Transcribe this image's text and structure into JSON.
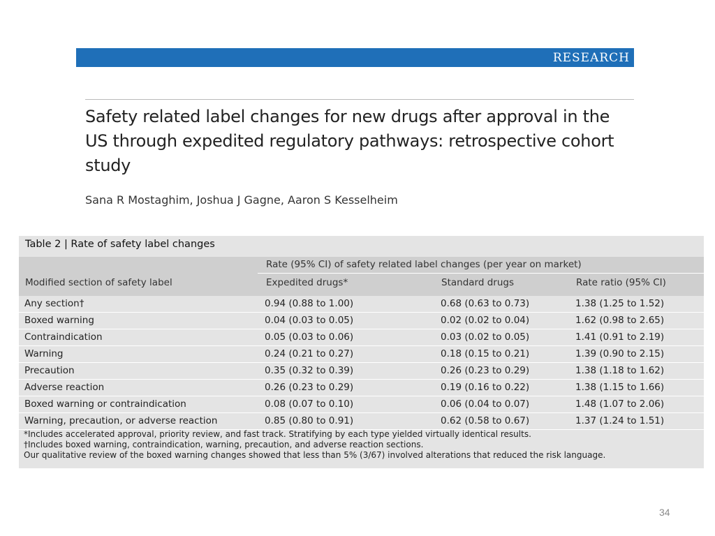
{
  "banner": {
    "label": "RESEARCH",
    "color": "#1f6fb8"
  },
  "article": {
    "title": "Safety related label changes for new drugs after approval in the US through expedited regulatory pathways: retrospective cohort study",
    "authors": "Sana R Mostaghim, Joshua J Gagne, Aaron S Kesselheim"
  },
  "table": {
    "caption": "Table 2 | Rate of safety label changes",
    "spanning_header": "Rate (95% CI) of safety related label changes (per year on market)",
    "columns": [
      "Modified section of safety label",
      "Expedited drugs*",
      "Standard drugs",
      "Rate ratio (95% CI)"
    ],
    "rows": [
      [
        "Any section†",
        "0.94 (0.88 to 1.00)",
        "0.68 (0.63 to 0.73)",
        "1.38 (1.25 to 1.52)"
      ],
      [
        "Boxed warning",
        "0.04 (0.03 to 0.05)",
        "0.02 (0.02 to 0.04)",
        "1.62 (0.98 to 2.65)"
      ],
      [
        "Contraindication",
        "0.05 (0.03 to 0.06)",
        "0.03 (0.02 to 0.05)",
        "1.41 (0.91 to 2.19)"
      ],
      [
        "Warning",
        "0.24 (0.21 to 0.27)",
        "0.18 (0.15 to 0.21)",
        "1.39 (0.90 to 2.15)"
      ],
      [
        "Precaution",
        "0.35 (0.32 to 0.39)",
        "0.26 (0.23 to 0.29)",
        "1.38 (1.18 to 1.62)"
      ],
      [
        "Adverse reaction",
        "0.26 (0.23 to 0.29)",
        "0.19 (0.16 to 0.22)",
        "1.38 (1.15 to 1.66)"
      ],
      [
        "Boxed warning or contraindication",
        "0.08 (0.07 to 0.10)",
        "0.06 (0.04 to 0.07)",
        "1.48 (1.07 to 2.06)"
      ],
      [
        "Warning, precaution, or adverse reaction",
        "0.85 (0.80 to 0.91)",
        "0.62 (0.58 to 0.67)",
        "1.37 (1.24 to 1.51)"
      ]
    ],
    "footnotes": [
      "*Includes accelerated approval, priority review, and fast track. Stratifying by each type yielded virtually identical results.",
      "†Includes boxed warning, contraindication, warning, precaution, and adverse reaction sections.",
      "Our qualitative review of the boxed warning changes showed that less than 5% (3/67) involved alterations that reduced the risk language."
    ]
  },
  "slide": {
    "page_number": "34"
  }
}
